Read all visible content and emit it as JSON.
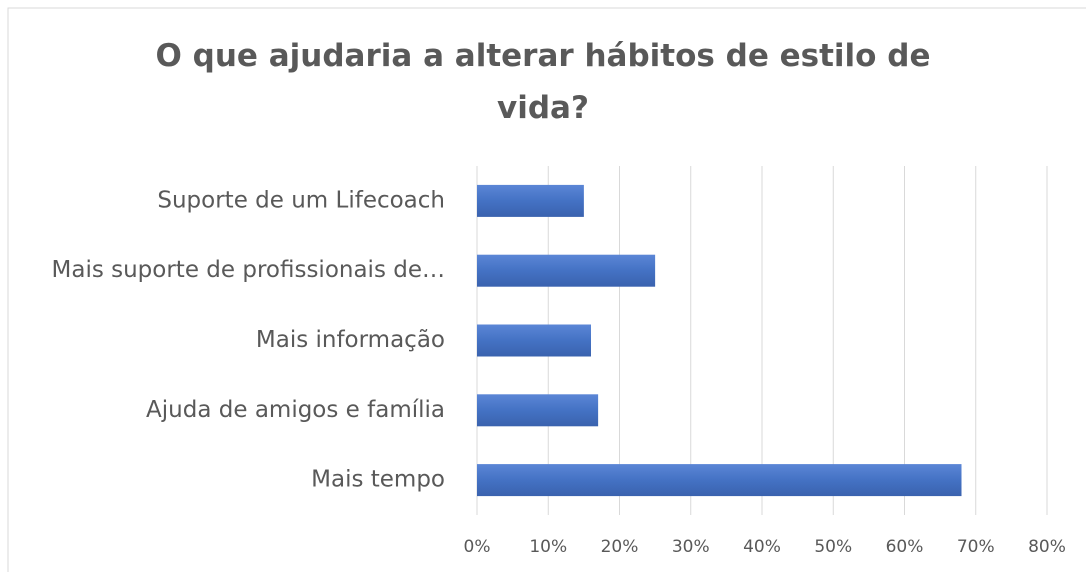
{
  "chart_data": {
    "type": "hbar",
    "title": "O que ajudaria a alterar hábitos de estilo de vida?",
    "categories": [
      "Suporte de um Lifecoach",
      "Mais suporte de profissionais de…",
      "Mais informação",
      "Ajuda de amigos e família",
      "Mais tempo"
    ],
    "values": [
      15,
      25,
      16,
      17,
      68
    ],
    "color": "#4472c4",
    "xlim": [
      0,
      80
    ],
    "xticks": [
      {
        "value": 0,
        "label": "0%"
      },
      {
        "value": 10,
        "label": "10%"
      },
      {
        "value": 20,
        "label": "20%"
      },
      {
        "value": 30,
        "label": "30%"
      },
      {
        "value": 40,
        "label": "40%"
      },
      {
        "value": 50,
        "label": "50%"
      },
      {
        "value": 60,
        "label": "60%"
      },
      {
        "value": 70,
        "label": "70%"
      },
      {
        "value": 80,
        "label": "80%"
      }
    ],
    "grid": true
  }
}
